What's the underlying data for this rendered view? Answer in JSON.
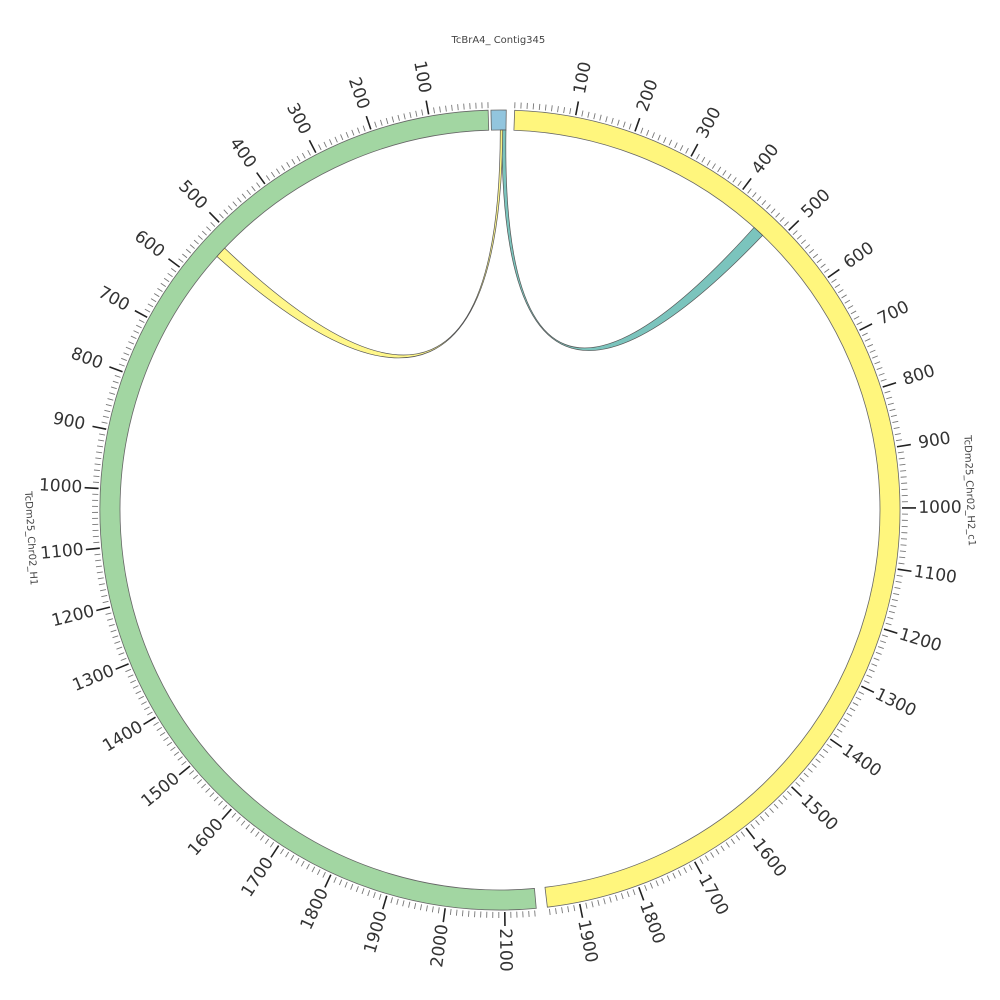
{
  "chromosomes": [
    {
      "id": "contig",
      "name": "TcBrA4_ Contig345",
      "length": 18,
      "color": "#92c5de",
      "start_deg": -1.3,
      "end_deg": 0.9,
      "tick_step": 0,
      "tick_reversed": false
    },
    {
      "id": "h2",
      "name": "TcDm25_Chr02_H2_c1",
      "length": 1953,
      "color": "#fff67d",
      "start_deg": 2.1,
      "end_deg": 173.2,
      "tick_step": 100,
      "tick_reversed": false
    },
    {
      "id": "h1",
      "name": "TcDm25_Chr02_H1",
      "length": 2153,
      "color": "#a2d6a2",
      "start_deg": 174.8,
      "end_deg": 358.3,
      "tick_step": 100,
      "tick_reversed": true
    }
  ],
  "links": [
    {
      "source": "contig",
      "source_range": [
        13,
        18
      ],
      "target": "h2",
      "target_range": [
        455,
        475
      ],
      "color": "#6dbeb6"
    },
    {
      "source": "contig",
      "source_range": [
        11,
        14
      ],
      "target": "h1",
      "target_range": [
        525,
        545
      ],
      "color": "#fff67d"
    }
  ]
}
